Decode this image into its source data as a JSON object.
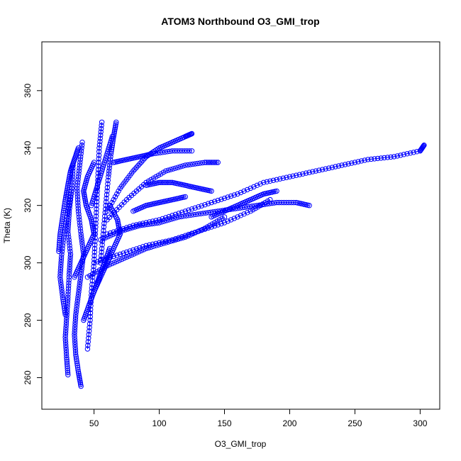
{
  "chart_data": {
    "type": "scatter",
    "title": "ATOM3 Northbound O3_GMI_trop",
    "xlabel": "O3_GMI_trop",
    "ylabel": "Theta (K)",
    "xlim": [
      10,
      315
    ],
    "ylim": [
      249,
      377
    ],
    "xticks": [
      50,
      100,
      150,
      200,
      250,
      300
    ],
    "yticks": [
      260,
      280,
      300,
      320,
      340,
      360
    ],
    "grid": false,
    "legend": "none",
    "marker": "open-circle",
    "connected": true,
    "color": "#0000ff",
    "series": [
      {
        "x": [
          40,
          38,
          36,
          35,
          36,
          38,
          40,
          42,
          40,
          38,
          37,
          39,
          41
        ],
        "y": [
          257,
          262,
          268,
          275,
          282,
          289,
          296,
          303,
          310,
          318,
          326,
          334,
          342
        ]
      },
      {
        "x": [
          30,
          29,
          28,
          29,
          30,
          31,
          32,
          30,
          31,
          33,
          34
        ],
        "y": [
          261,
          267,
          274,
          281,
          288,
          296,
          303,
          311,
          318,
          326,
          334
        ]
      },
      {
        "x": [
          28,
          26,
          24,
          25,
          27,
          30,
          33
        ],
        "y": [
          282,
          288,
          295,
          302,
          310,
          318,
          326
        ]
      },
      {
        "x": [
          23,
          24,
          26,
          28,
          30,
          32,
          35,
          38
        ],
        "y": [
          304,
          310,
          316,
          322,
          327,
          332,
          336,
          340
        ]
      },
      {
        "x": [
          45,
          47,
          48,
          50,
          51,
          52,
          53,
          54,
          56
        ],
        "y": [
          270,
          280,
          290,
          300,
          310,
          320,
          330,
          340,
          349
        ]
      },
      {
        "x": [
          55,
          57,
          59,
          61,
          63,
          65,
          67
        ],
        "y": [
          300,
          310,
          320,
          330,
          338,
          344,
          349
        ]
      },
      {
        "x": [
          60,
          70,
          80,
          90,
          100,
          110,
          120,
          125
        ],
        "y": [
          318,
          326,
          332,
          337,
          340,
          342,
          344,
          345
        ]
      },
      {
        "x": [
          60,
          75,
          90,
          105,
          120,
          135,
          145
        ],
        "y": [
          315,
          322,
          328,
          332,
          334,
          335,
          335
        ]
      },
      {
        "x": [
          55,
          70,
          85,
          100,
          115,
          130,
          145,
          160,
          175,
          190,
          205,
          215
        ],
        "y": [
          308,
          311,
          313,
          314,
          316,
          317,
          318,
          319,
          320,
          321,
          321,
          320
        ]
      },
      {
        "x": [
          60,
          80,
          100,
          120,
          140,
          160,
          180,
          200,
          220,
          240,
          260,
          280,
          300,
          303
        ],
        "y": [
          310,
          313,
          315,
          318,
          321,
          324,
          328,
          330,
          332,
          334,
          336,
          337,
          339,
          341
        ]
      },
      {
        "x": [
          50,
          70,
          90,
          110,
          130,
          150,
          170,
          185
        ],
        "y": [
          300,
          303,
          306,
          308,
          311,
          314,
          318,
          322
        ]
      },
      {
        "x": [
          45,
          60,
          75,
          90,
          105,
          120,
          135,
          150
        ],
        "y": [
          295,
          299,
          302,
          305,
          307,
          309,
          312,
          316
        ]
      },
      {
        "x": [
          65,
          75,
          85,
          95,
          110,
          125
        ],
        "y": [
          335,
          336,
          337,
          338,
          339,
          339
        ]
      },
      {
        "x": [
          90,
          100,
          110,
          120,
          130,
          140
        ],
        "y": [
          327,
          328,
          328,
          327,
          326,
          325
        ]
      },
      {
        "x": [
          80,
          90,
          100,
          110,
          120
        ],
        "y": [
          318,
          320,
          321,
          322,
          323
        ]
      },
      {
        "x": [
          140,
          150,
          160,
          170,
          180,
          190
        ],
        "y": [
          316,
          318,
          320,
          322,
          324,
          325
        ]
      },
      {
        "x": [
          50,
          55,
          60,
          65,
          70,
          68,
          62
        ],
        "y": [
          290,
          295,
          300,
          305,
          310,
          315,
          320
        ]
      },
      {
        "x": [
          35,
          40,
          45,
          50,
          48,
          44,
          42,
          45,
          50
        ],
        "y": [
          295,
          300,
          305,
          310,
          315,
          320,
          325,
          330,
          335
        ]
      },
      {
        "x": [
          48,
          52,
          56,
          60,
          64
        ],
        "y": [
          320,
          326,
          332,
          338,
          344
        ]
      },
      {
        "x": [
          42,
          46,
          50,
          54,
          58,
          62
        ],
        "y": [
          280,
          285,
          290,
          295,
          300,
          305
        ]
      }
    ]
  }
}
